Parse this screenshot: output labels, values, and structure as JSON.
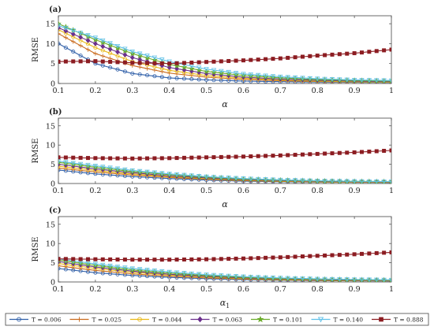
{
  "chart_data": [
    {
      "type": "line",
      "panel_label": "(a)",
      "xlabel": "α",
      "ylabel": "RMSE",
      "xlim": [
        0.1,
        1
      ],
      "ylim": [
        0,
        17
      ],
      "x_ticks": [
        "0.1",
        "0.2",
        "0.3",
        "0.4",
        "0.5",
        "0.6",
        "0.7",
        "0.8",
        "0.9",
        "1"
      ],
      "y_ticks": [
        "0",
        "5",
        "10",
        "15"
      ],
      "grid": false,
      "series": [
        {
          "name": "T = 0.006",
          "color": "#2f5fa8",
          "marker": "circle",
          "points": [
            [
              0.1,
              10.0
            ],
            [
              0.2,
              5.0
            ],
            [
              0.3,
              2.5
            ],
            [
              0.4,
              1.4
            ],
            [
              0.5,
              0.9
            ],
            [
              0.6,
              0.6
            ],
            [
              0.7,
              0.45
            ],
            [
              0.8,
              0.35
            ],
            [
              0.9,
              0.3
            ],
            [
              1.0,
              0.25
            ]
          ]
        },
        {
          "name": "T = 0.025",
          "color": "#c96a1c",
          "marker": "plus",
          "points": [
            [
              0.1,
              12.5
            ],
            [
              0.2,
              7.5
            ],
            [
              0.3,
              4.5
            ],
            [
              0.4,
              2.6
            ],
            [
              0.5,
              1.6
            ],
            [
              0.6,
              1.0
            ],
            [
              0.7,
              0.7
            ],
            [
              0.8,
              0.5
            ],
            [
              0.9,
              0.4
            ],
            [
              1.0,
              0.35
            ]
          ]
        },
        {
          "name": "T = 0.044",
          "color": "#e8b818",
          "marker": "circle",
          "points": [
            [
              0.1,
              13.5
            ],
            [
              0.2,
              9.0
            ],
            [
              0.3,
              5.5
            ],
            [
              0.4,
              3.3
            ],
            [
              0.5,
              2.0
            ],
            [
              0.6,
              1.3
            ],
            [
              0.7,
              0.9
            ],
            [
              0.8,
              0.6
            ],
            [
              0.9,
              0.45
            ],
            [
              1.0,
              0.4
            ]
          ]
        },
        {
          "name": "T = 0.063",
          "color": "#6a2f8c",
          "marker": "diamond",
          "points": [
            [
              0.1,
              14.0
            ],
            [
              0.2,
              10.0
            ],
            [
              0.3,
              6.5
            ],
            [
              0.4,
              4.0
            ],
            [
              0.5,
              2.5
            ],
            [
              0.6,
              1.6
            ],
            [
              0.7,
              1.1
            ],
            [
              0.8,
              0.8
            ],
            [
              0.9,
              0.6
            ],
            [
              1.0,
              0.5
            ]
          ]
        },
        {
          "name": "T = 0.101",
          "color": "#6bab2b",
          "marker": "star",
          "points": [
            [
              0.1,
              15.0
            ],
            [
              0.2,
              11.0
            ],
            [
              0.3,
              7.5
            ],
            [
              0.4,
              4.8
            ],
            [
              0.5,
              3.0
            ],
            [
              0.6,
              2.0
            ],
            [
              0.7,
              1.4
            ],
            [
              0.8,
              1.0
            ],
            [
              0.9,
              0.75
            ],
            [
              1.0,
              0.6
            ]
          ]
        },
        {
          "name": "T = 0.140",
          "color": "#5fc0e8",
          "marker": "triangle-down",
          "points": [
            [
              0.1,
              14.5
            ],
            [
              0.2,
              11.5
            ],
            [
              0.3,
              8.0
            ],
            [
              0.4,
              5.5
            ],
            [
              0.5,
              3.6
            ],
            [
              0.6,
              2.4
            ],
            [
              0.7,
              1.7
            ],
            [
              0.8,
              1.2
            ],
            [
              0.9,
              0.9
            ],
            [
              1.0,
              0.75
            ]
          ]
        },
        {
          "name": "T = 0.888",
          "color": "#8c1d22",
          "marker": "square",
          "points": [
            [
              0.1,
              5.5
            ],
            [
              0.2,
              5.6
            ],
            [
              0.3,
              5.2
            ],
            [
              0.4,
              5.0
            ],
            [
              0.5,
              5.4
            ],
            [
              0.6,
              5.8
            ],
            [
              0.7,
              6.3
            ],
            [
              0.8,
              7.0
            ],
            [
              0.9,
              7.6
            ],
            [
              1.0,
              8.5
            ]
          ]
        }
      ]
    },
    {
      "type": "line",
      "panel_label": "(b)",
      "xlabel": "α",
      "ylabel": "RMSE",
      "xlim": [
        0.1,
        1
      ],
      "ylim": [
        0,
        17
      ],
      "x_ticks": [
        "0.1",
        "0.2",
        "0.3",
        "0.4",
        "0.5",
        "0.6",
        "0.7",
        "0.8",
        "0.9",
        "1"
      ],
      "y_ticks": [
        "0",
        "5",
        "10",
        "15"
      ],
      "grid": false,
      "series": [
        {
          "name": "T = 0.006",
          "color": "#2f5fa8",
          "marker": "circle",
          "points": [
            [
              0.1,
              3.5
            ],
            [
              0.2,
              2.5
            ],
            [
              0.3,
              1.8
            ],
            [
              0.4,
              1.3
            ],
            [
              0.5,
              0.9
            ],
            [
              0.6,
              0.6
            ],
            [
              0.7,
              0.45
            ],
            [
              0.8,
              0.35
            ],
            [
              0.9,
              0.3
            ],
            [
              1.0,
              0.25
            ]
          ]
        },
        {
          "name": "T = 0.025",
          "color": "#c96a1c",
          "marker": "plus",
          "points": [
            [
              0.1,
              4.0
            ],
            [
              0.2,
              3.0
            ],
            [
              0.3,
              2.2
            ],
            [
              0.4,
              1.6
            ],
            [
              0.5,
              1.1
            ],
            [
              0.6,
              0.75
            ],
            [
              0.7,
              0.55
            ],
            [
              0.8,
              0.42
            ],
            [
              0.9,
              0.35
            ],
            [
              1.0,
              0.3
            ]
          ]
        },
        {
          "name": "T = 0.044",
          "color": "#e8b818",
          "marker": "circle",
          "points": [
            [
              0.1,
              4.5
            ],
            [
              0.2,
              3.4
            ],
            [
              0.3,
              2.5
            ],
            [
              0.4,
              1.8
            ],
            [
              0.5,
              1.3
            ],
            [
              0.6,
              0.9
            ],
            [
              0.7,
              0.65
            ],
            [
              0.8,
              0.5
            ],
            [
              0.9,
              0.4
            ],
            [
              1.0,
              0.35
            ]
          ]
        },
        {
          "name": "T = 0.063",
          "color": "#6a2f8c",
          "marker": "diamond",
          "points": [
            [
              0.1,
              5.0
            ],
            [
              0.2,
              3.8
            ],
            [
              0.3,
              2.8
            ],
            [
              0.4,
              2.0
            ],
            [
              0.5,
              1.45
            ],
            [
              0.6,
              1.0
            ],
            [
              0.7,
              0.75
            ],
            [
              0.8,
              0.58
            ],
            [
              0.9,
              0.47
            ],
            [
              1.0,
              0.4
            ]
          ]
        },
        {
          "name": "T = 0.101",
          "color": "#6bab2b",
          "marker": "star",
          "points": [
            [
              0.1,
              5.5
            ],
            [
              0.2,
              4.2
            ],
            [
              0.3,
              3.1
            ],
            [
              0.4,
              2.3
            ],
            [
              0.5,
              1.65
            ],
            [
              0.6,
              1.15
            ],
            [
              0.7,
              0.85
            ],
            [
              0.8,
              0.65
            ],
            [
              0.9,
              0.52
            ],
            [
              1.0,
              0.45
            ]
          ]
        },
        {
          "name": "T = 0.140",
          "color": "#5fc0e8",
          "marker": "triangle-down",
          "points": [
            [
              0.1,
              5.8
            ],
            [
              0.2,
              4.6
            ],
            [
              0.3,
              3.4
            ],
            [
              0.4,
              2.5
            ],
            [
              0.5,
              1.8
            ],
            [
              0.6,
              1.3
            ],
            [
              0.7,
              0.95
            ],
            [
              0.8,
              0.72
            ],
            [
              0.9,
              0.58
            ],
            [
              1.0,
              0.5
            ]
          ]
        },
        {
          "name": "T = 0.888",
          "color": "#8c1d22",
          "marker": "square",
          "points": [
            [
              0.1,
              6.8
            ],
            [
              0.2,
              6.6
            ],
            [
              0.3,
              6.5
            ],
            [
              0.4,
              6.6
            ],
            [
              0.5,
              6.8
            ],
            [
              0.6,
              7.0
            ],
            [
              0.7,
              7.3
            ],
            [
              0.8,
              7.7
            ],
            [
              0.9,
              8.1
            ],
            [
              1.0,
              8.6
            ]
          ]
        }
      ]
    },
    {
      "type": "line",
      "panel_label": "(c)",
      "xlabel": "α",
      "xlabel_sub": "1",
      "ylabel": "RMSE",
      "xlim": [
        0.1,
        1
      ],
      "ylim": [
        0,
        17
      ],
      "x_ticks": [
        "0.1",
        "0.2",
        "0.3",
        "0.4",
        "0.5",
        "0.6",
        "0.7",
        "0.8",
        "0.9",
        "1"
      ],
      "y_ticks": [
        "0",
        "5",
        "10",
        "15"
      ],
      "grid": false,
      "series": [
        {
          "name": "T = 0.006",
          "color": "#2f5fa8",
          "marker": "circle",
          "points": [
            [
              0.1,
              3.5
            ],
            [
              0.2,
              2.4
            ],
            [
              0.3,
              1.7
            ],
            [
              0.4,
              1.2
            ],
            [
              0.5,
              0.85
            ],
            [
              0.6,
              0.6
            ],
            [
              0.7,
              0.45
            ],
            [
              0.8,
              0.35
            ],
            [
              0.9,
              0.3
            ],
            [
              1.0,
              0.25
            ]
          ]
        },
        {
          "name": "T = 0.025",
          "color": "#c96a1c",
          "marker": "plus",
          "points": [
            [
              0.1,
              4.2
            ],
            [
              0.2,
              3.0
            ],
            [
              0.3,
              2.1
            ],
            [
              0.4,
              1.5
            ],
            [
              0.5,
              1.05
            ],
            [
              0.6,
              0.75
            ],
            [
              0.7,
              0.55
            ],
            [
              0.8,
              0.42
            ],
            [
              0.9,
              0.35
            ],
            [
              1.0,
              0.3
            ]
          ]
        },
        {
          "name": "T = 0.044",
          "color": "#e8b818",
          "marker": "circle",
          "points": [
            [
              0.1,
              4.8
            ],
            [
              0.2,
              3.5
            ],
            [
              0.3,
              2.5
            ],
            [
              0.4,
              1.8
            ],
            [
              0.5,
              1.3
            ],
            [
              0.6,
              0.92
            ],
            [
              0.7,
              0.68
            ],
            [
              0.8,
              0.52
            ],
            [
              0.9,
              0.42
            ],
            [
              1.0,
              0.36
            ]
          ]
        },
        {
          "name": "T = 0.063",
          "color": "#6a2f8c",
          "marker": "diamond",
          "points": [
            [
              0.1,
              5.3
            ],
            [
              0.2,
              3.9
            ],
            [
              0.3,
              2.8
            ],
            [
              0.4,
              2.0
            ],
            [
              0.5,
              1.45
            ],
            [
              0.6,
              1.05
            ],
            [
              0.7,
              0.78
            ],
            [
              0.8,
              0.6
            ],
            [
              0.9,
              0.48
            ],
            [
              1.0,
              0.4
            ]
          ]
        },
        {
          "name": "T = 0.101",
          "color": "#6bab2b",
          "marker": "star",
          "points": [
            [
              0.1,
              5.7
            ],
            [
              0.2,
              4.3
            ],
            [
              0.3,
              3.1
            ],
            [
              0.4,
              2.3
            ],
            [
              0.5,
              1.65
            ],
            [
              0.6,
              1.2
            ],
            [
              0.7,
              0.88
            ],
            [
              0.8,
              0.68
            ],
            [
              0.9,
              0.54
            ],
            [
              1.0,
              0.45
            ]
          ]
        },
        {
          "name": "T = 0.140",
          "color": "#5fc0e8",
          "marker": "triangle-down",
          "points": [
            [
              0.1,
              6.0
            ],
            [
              0.2,
              4.7
            ],
            [
              0.3,
              3.5
            ],
            [
              0.4,
              2.6
            ],
            [
              0.5,
              1.9
            ],
            [
              0.6,
              1.4
            ],
            [
              0.7,
              1.05
            ],
            [
              0.8,
              0.8
            ],
            [
              0.9,
              0.64
            ],
            [
              1.0,
              0.55
            ]
          ]
        },
        {
          "name": "T = 0.888",
          "color": "#8c1d22",
          "marker": "square",
          "points": [
            [
              0.1,
              6.0
            ],
            [
              0.2,
              5.9
            ],
            [
              0.3,
              5.8
            ],
            [
              0.4,
              5.8
            ],
            [
              0.5,
              5.9
            ],
            [
              0.6,
              6.1
            ],
            [
              0.7,
              6.4
            ],
            [
              0.8,
              6.8
            ],
            [
              0.9,
              7.2
            ],
            [
              1.0,
              7.7
            ]
          ]
        }
      ]
    }
  ],
  "legend": {
    "placement": "bottom",
    "entries": [
      "T = 0.006",
      "T = 0.025",
      "T = 0.044",
      "T = 0.063",
      "T = 0.101",
      "T = 0.140",
      "T = 0.888"
    ]
  }
}
